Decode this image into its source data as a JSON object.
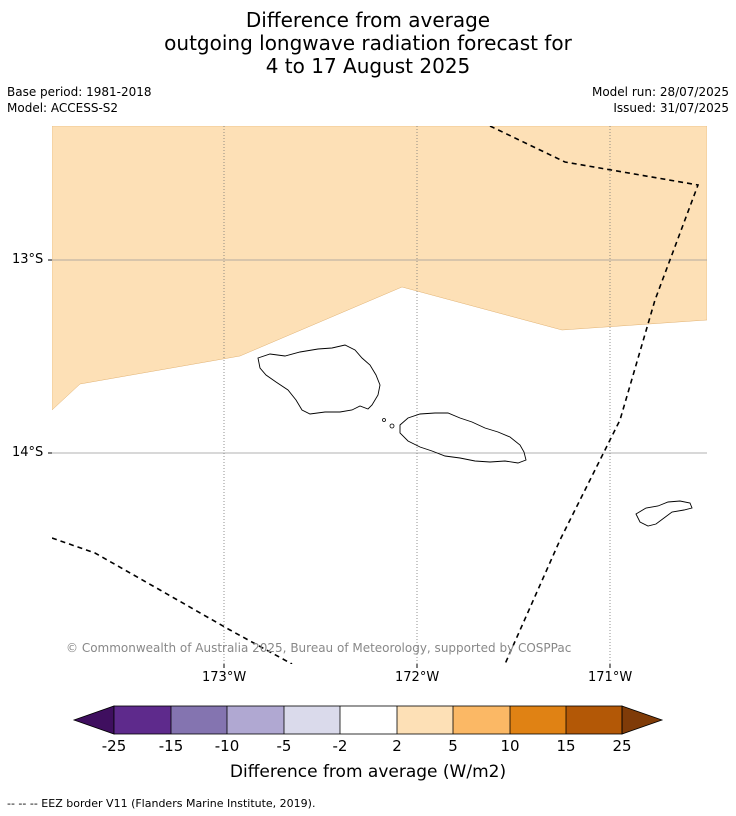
{
  "title": {
    "line1": "Difference from average",
    "line2": "outgoing longwave radiation forecast for",
    "line3": "4 to 17 August 2025"
  },
  "meta": {
    "base_period": "Base period: 1981-2018",
    "model": "Model: ACCESS-S2",
    "model_run": "Model run: 28/07/2025",
    "issued": "Issued: 31/07/2025"
  },
  "map": {
    "lat_labels": [
      "13°S",
      "14°S"
    ],
    "lon_labels": [
      "173°W",
      "172°W",
      "171°W"
    ],
    "copyright": "© Commonwealth of Australia 2025, Bureau of Meteorology, supported by COSPPac",
    "shaded_category": "2 to 5",
    "shaded_color": "#fde0b6"
  },
  "colorbar": {
    "title": "Difference from average (W/m2)",
    "ticks": [
      "-25",
      "-15",
      "-10",
      "-5",
      "-2",
      "2",
      "5",
      "10",
      "15",
      "25"
    ],
    "colors": [
      "#3f0f5f",
      "#5e2a8c",
      "#8474b0",
      "#b0a8d2",
      "#dadaeb",
      "#ffffff",
      "#fde0b6",
      "#fbb865",
      "#e08214",
      "#b35806",
      "#7f3b08"
    ]
  },
  "legend_note": "--  --  -- EEZ border V11 (Flanders Marine Institute, 2019)."
}
